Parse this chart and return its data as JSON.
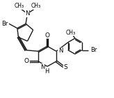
{
  "bg_color": "#ffffff",
  "line_color": "#1a1a1a",
  "line_width": 1.0,
  "figsize": [
    1.64,
    1.42
  ],
  "dpi": 100,
  "xlim": [
    0,
    10
  ],
  "ylim": [
    0,
    8.6
  ]
}
